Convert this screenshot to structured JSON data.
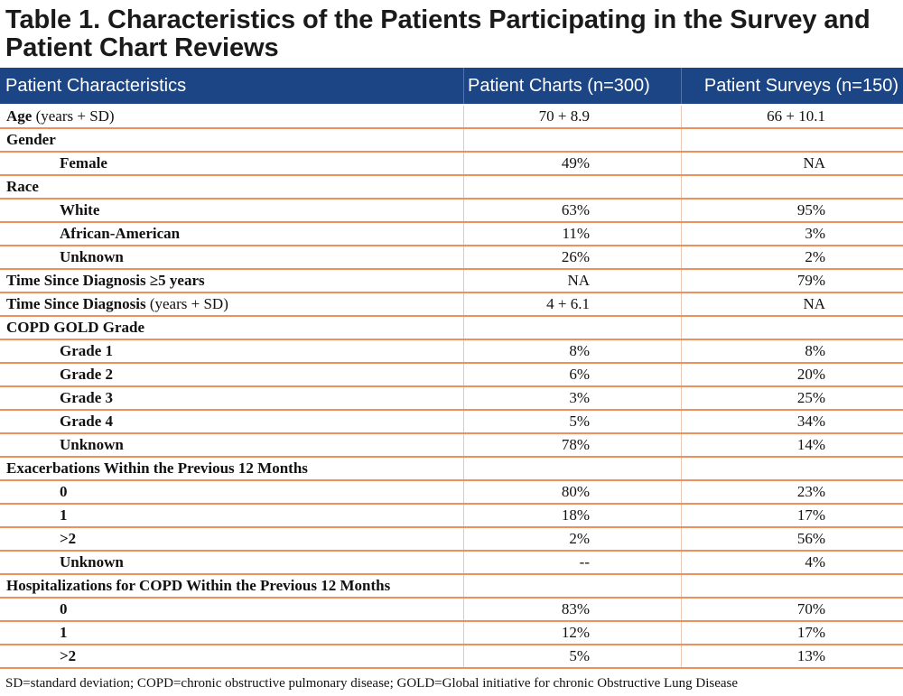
{
  "table": {
    "title_line1": "Table 1.  Characteristics of the Patients Participating in the Survey and",
    "title_line2": "Patient Chart Reviews",
    "columns": [
      "Patient Characteristics",
      "Patient Charts (n=300)",
      "Patient Surveys (n=150)"
    ],
    "rows": [
      {
        "label_bold": "Age",
        "label_normal": " (years + SD)",
        "indent": false,
        "charts": "70 + 8.9",
        "surveys": "66 + 10.1"
      },
      {
        "label_bold": "Gender",
        "label_normal": "",
        "indent": false,
        "charts": "",
        "surveys": ""
      },
      {
        "label_bold": "Female",
        "label_normal": "",
        "indent": true,
        "charts": "49%",
        "surveys": "NA"
      },
      {
        "label_bold": "Race",
        "label_normal": "",
        "indent": false,
        "charts": "",
        "surveys": ""
      },
      {
        "label_bold": "White",
        "label_normal": "",
        "indent": true,
        "charts": "63%",
        "surveys": "95%"
      },
      {
        "label_bold": "African-American",
        "label_normal": "",
        "indent": true,
        "charts": "11%",
        "surveys": "3%"
      },
      {
        "label_bold": "Unknown",
        "label_normal": "",
        "indent": true,
        "charts": "26%",
        "surveys": "2%"
      },
      {
        "label_bold": "Time Since Diagnosis ≥5 years",
        "label_normal": "",
        "indent": false,
        "charts": "NA",
        "surveys": "79%"
      },
      {
        "label_bold": "Time Since Diagnosis",
        "label_normal": " (years + SD)",
        "indent": false,
        "charts": "4 + 6.1",
        "surveys": "NA"
      },
      {
        "label_bold": "COPD GOLD Grade",
        "label_normal": "",
        "indent": false,
        "charts": "",
        "surveys": ""
      },
      {
        "label_bold": "Grade 1",
        "label_normal": "",
        "indent": true,
        "charts": "8%",
        "surveys": "8%"
      },
      {
        "label_bold": "Grade 2",
        "label_normal": "",
        "indent": true,
        "charts": "6%",
        "surveys": "20%"
      },
      {
        "label_bold": "Grade 3",
        "label_normal": "",
        "indent": true,
        "charts": "3%",
        "surveys": "25%"
      },
      {
        "label_bold": "Grade 4",
        "label_normal": "",
        "indent": true,
        "charts": "5%",
        "surveys": "34%"
      },
      {
        "label_bold": "Unknown",
        "label_normal": "",
        "indent": true,
        "charts": "78%",
        "surveys": "14%"
      },
      {
        "label_bold": "Exacerbations Within the Previous 12 Months",
        "label_normal": "",
        "indent": false,
        "charts": "",
        "surveys": ""
      },
      {
        "label_bold": "0",
        "label_normal": "",
        "indent": true,
        "charts": "80%",
        "surveys": "23%"
      },
      {
        "label_bold": "1",
        "label_normal": "",
        "indent": true,
        "charts": "18%",
        "surveys": "17%"
      },
      {
        "label_bold": ">2",
        "label_normal": "",
        "indent": true,
        "charts": "2%",
        "surveys": "56%"
      },
      {
        "label_bold": "Unknown",
        "label_normal": "",
        "indent": true,
        "charts": "--",
        "surveys": "4%"
      },
      {
        "label_bold": "Hospitalizations for COPD Within the Previous 12 Months",
        "label_normal": "",
        "indent": false,
        "charts": "",
        "surveys": ""
      },
      {
        "label_bold": "0",
        "label_normal": "",
        "indent": true,
        "charts": "83%",
        "surveys": "70%"
      },
      {
        "label_bold": "1",
        "label_normal": "",
        "indent": true,
        "charts": "12%",
        "surveys": "17%"
      },
      {
        "label_bold": ">2",
        "label_normal": "",
        "indent": true,
        "charts": "5%",
        "surveys": "13%"
      }
    ],
    "footnote": "SD=standard deviation; COPD=chronic obstructive pulmonary disease; GOLD=Global initiative for chronic Obstructive Lung Disease"
  },
  "colors": {
    "header_bg": "#1c4585",
    "row_rule": "#ef8f5a"
  }
}
